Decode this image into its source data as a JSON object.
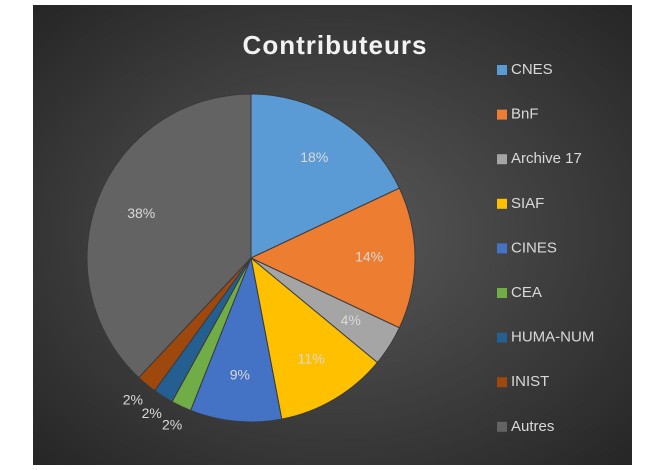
{
  "chart_data": {
    "type": "pie",
    "title": "Contributeurs",
    "categories": [
      "CNES",
      "BnF",
      "Archive 17",
      "SIAF",
      "CINES",
      "CEA",
      "HUMA-NUM",
      "INIST",
      "Autres"
    ],
    "values": [
      18,
      14,
      4,
      11,
      9,
      2,
      2,
      2,
      38
    ],
    "value_labels": [
      "18%",
      "14%",
      "4%",
      "11%",
      "9%",
      "2%",
      "2%",
      "2%",
      "38%"
    ],
    "colors": [
      "#5b9bd5",
      "#ed7d31",
      "#a5a5a5",
      "#ffc000",
      "#4472c4",
      "#70ad47",
      "#255e91",
      "#9e480e",
      "#636363"
    ],
    "legend": "right"
  }
}
